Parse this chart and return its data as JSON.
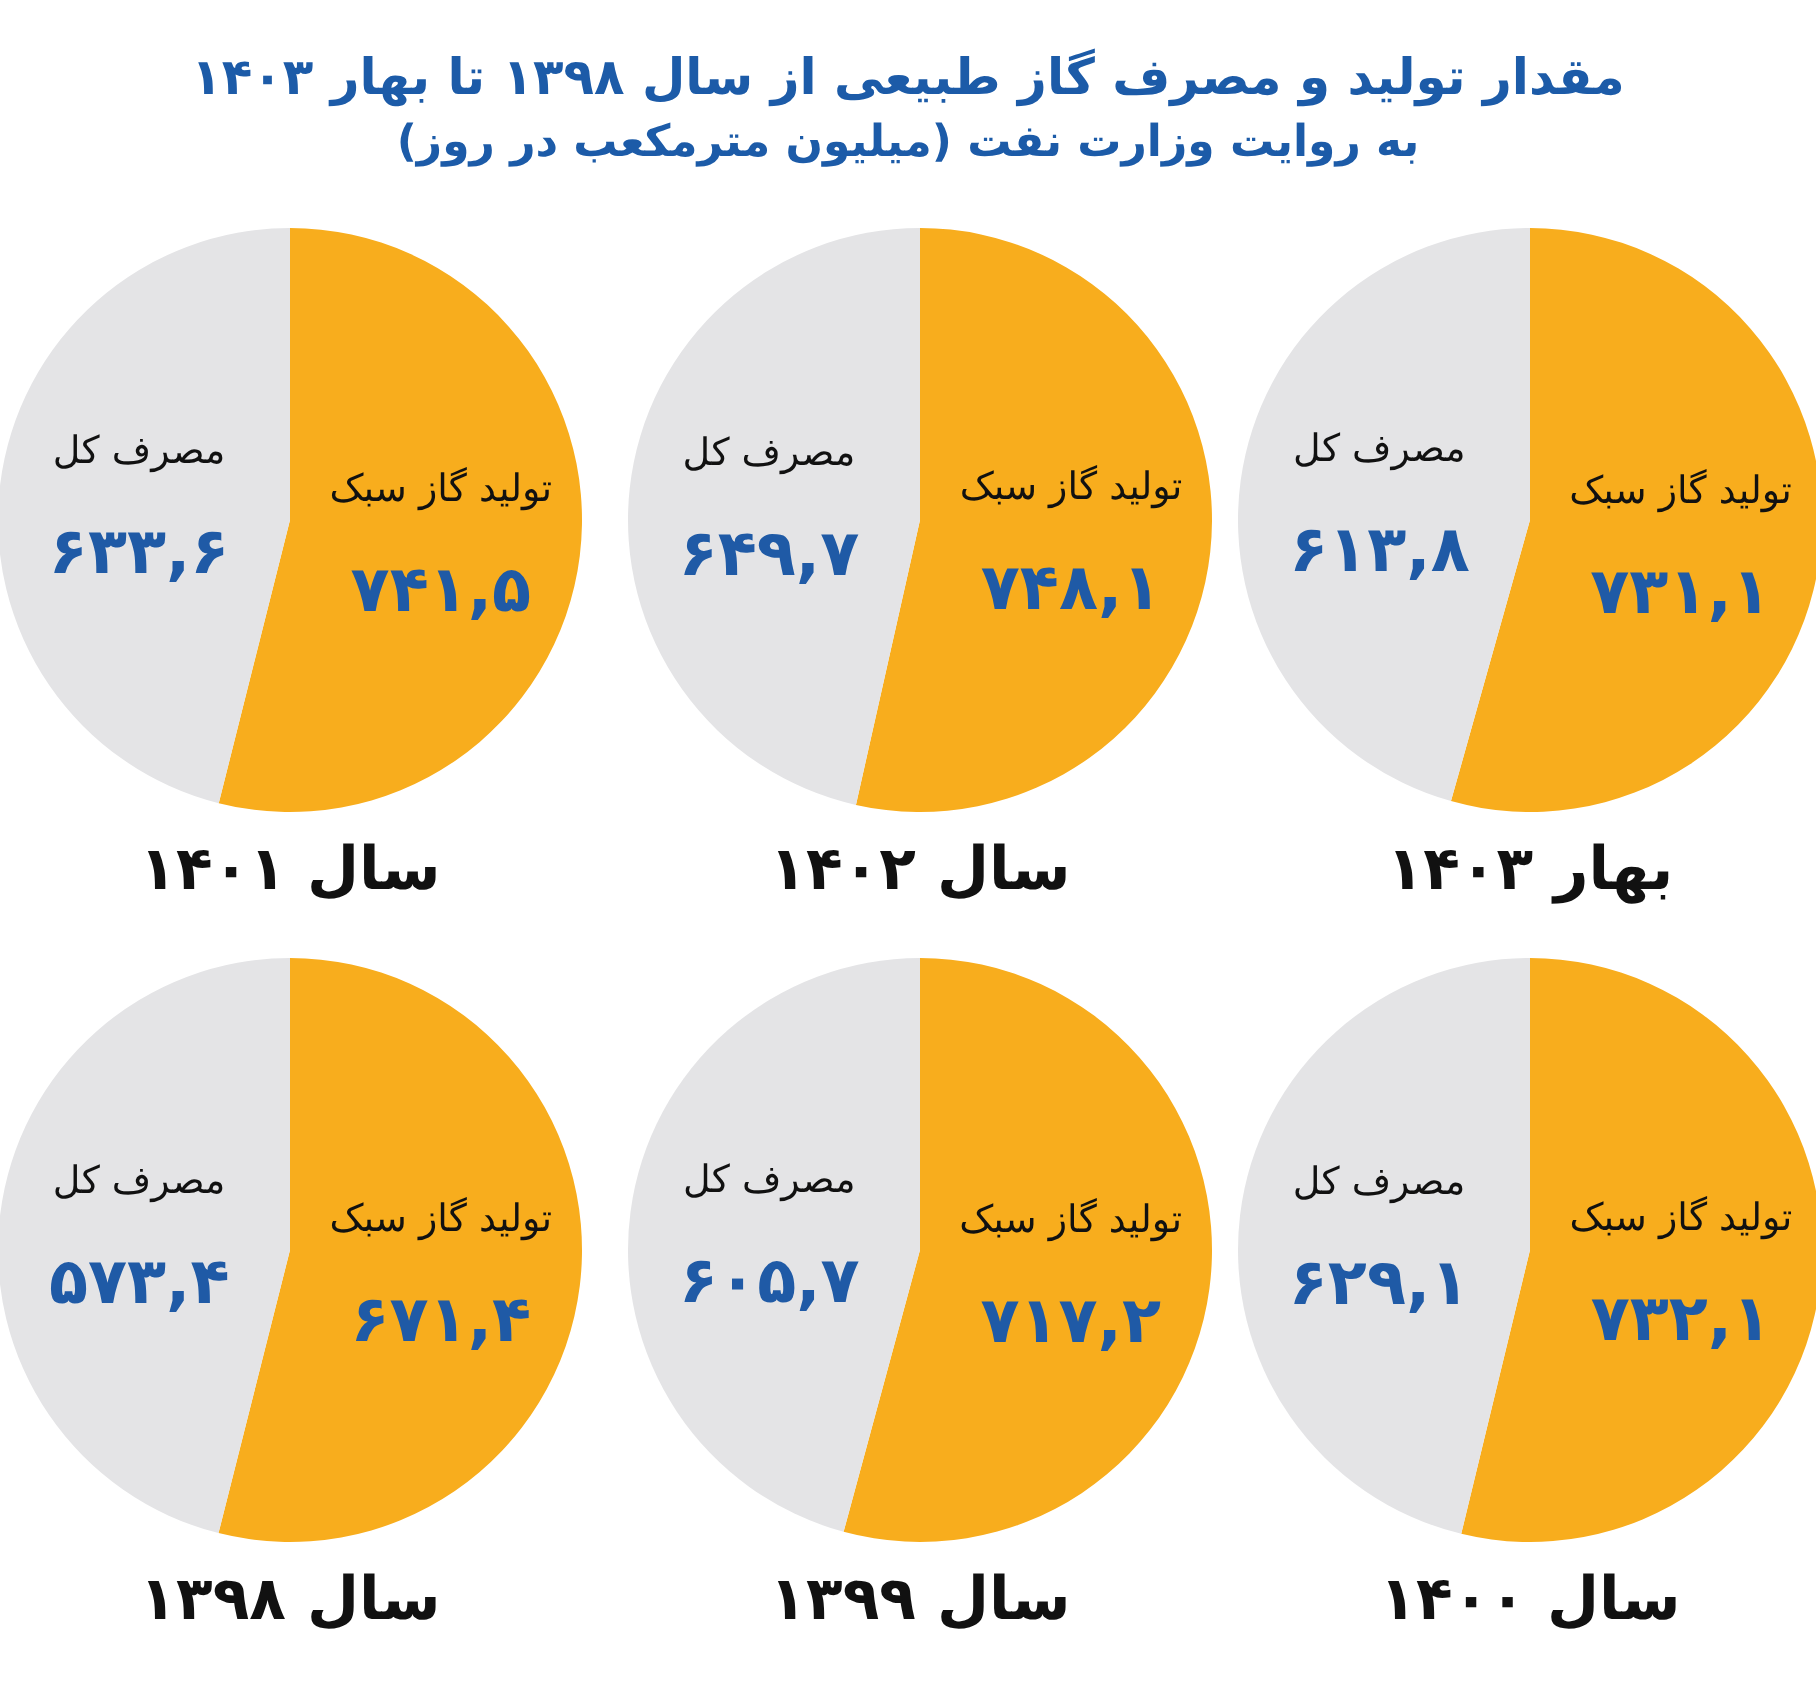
{
  "chart_data": [
    {
      "type": "other",
      "title": "مقدار تولید و مصرف گاز طبیعی از سال ۱۳۹۸ تا بهار ۱۴۰۳",
      "subtitle": "به روایت وزارت نفت (میلیون مترمکعب در روز)"
    },
    {
      "type": "pie",
      "title": "بهار ۱۴۰۳",
      "categories": [
        "تولید گاز سبک",
        "مصرف کل"
      ],
      "values": [
        731.1,
        613.8
      ],
      "value_labels": [
        "۷۳۱,۱",
        "۶۱۳,۸"
      ],
      "colors": [
        "#f8ad1d",
        "#e4e4e6"
      ]
    },
    {
      "type": "pie",
      "title": "سال ۱۴۰۲",
      "categories": [
        "تولید گاز سبک",
        "مصرف کل"
      ],
      "values": [
        748.1,
        649.7
      ],
      "value_labels": [
        "۷۴۸,۱",
        "۶۴۹,۷"
      ],
      "colors": [
        "#f8ad1d",
        "#e4e4e6"
      ]
    },
    {
      "type": "pie",
      "title": "سال ۱۴۰۱",
      "categories": [
        "تولید گاز سبک",
        "مصرف کل"
      ],
      "values": [
        741.5,
        633.6
      ],
      "value_labels": [
        "۷۴۱,۵",
        "۶۳۳,۶"
      ],
      "colors": [
        "#f8ad1d",
        "#e4e4e6"
      ]
    },
    {
      "type": "pie",
      "title": "سال ۱۴۰۰",
      "categories": [
        "تولید گاز سبک",
        "مصرف کل"
      ],
      "values": [
        732.1,
        629.1
      ],
      "value_labels": [
        "۷۳۲,۱",
        "۶۲۹,۱"
      ],
      "colors": [
        "#f8ad1d",
        "#e4e4e6"
      ]
    },
    {
      "type": "pie",
      "title": "سال ۱۳۹۹",
      "categories": [
        "تولید گاز سبک",
        "مصرف کل"
      ],
      "values": [
        717.2,
        605.7
      ],
      "value_labels": [
        "۷۱۷,۲",
        "۶۰۵,۷"
      ],
      "colors": [
        "#f8ad1d",
        "#e4e4e6"
      ]
    },
    {
      "type": "pie",
      "title": "سال ۱۳۹۸",
      "categories": [
        "تولید گاز سبک",
        "مصرف کل"
      ],
      "values": [
        671.4,
        573.4
      ],
      "value_labels": [
        "۶۷۱,۴",
        "۵۷۳,۴"
      ],
      "colors": [
        "#f8ad1d",
        "#e4e4e6"
      ]
    }
  ]
}
